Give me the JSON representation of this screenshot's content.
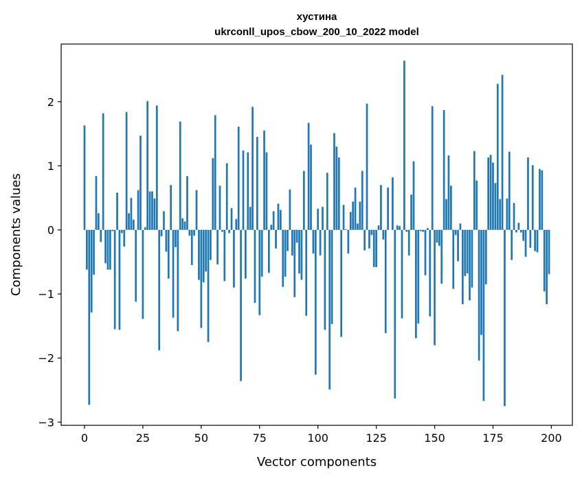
{
  "chart_data": {
    "type": "bar",
    "title": "хустина",
    "subtitle": "ukrconll_upos_cbow_200_10_2022 model",
    "xlabel": "Vector components",
    "ylabel": "Components values",
    "xlim": [
      -10,
      209
    ],
    "ylim": [
      -3.05,
      2.9
    ],
    "xticks": [
      0,
      25,
      50,
      75,
      100,
      125,
      150,
      175,
      200
    ],
    "yticks": [
      -3,
      -2,
      -1,
      0,
      1,
      2
    ],
    "ytick_labels": [
      "−3",
      "−2",
      "−1",
      "0",
      "1",
      "2"
    ],
    "grid": false,
    "bar_color": "#1f77b4",
    "x": [
      0,
      1,
      2,
      3,
      4,
      5,
      6,
      7,
      8,
      9,
      10,
      11,
      12,
      13,
      14,
      15,
      16,
      17,
      18,
      19,
      20,
      21,
      22,
      23,
      24,
      25,
      26,
      27,
      28,
      29,
      30,
      31,
      32,
      33,
      34,
      35,
      36,
      37,
      38,
      39,
      40,
      41,
      42,
      43,
      44,
      45,
      46,
      47,
      48,
      49,
      50,
      51,
      52,
      53,
      54,
      55,
      56,
      57,
      58,
      59,
      60,
      61,
      62,
      63,
      64,
      65,
      66,
      67,
      68,
      69,
      70,
      71,
      72,
      73,
      74,
      75,
      76,
      77,
      78,
      79,
      80,
      81,
      82,
      83,
      84,
      85,
      86,
      87,
      88,
      89,
      90,
      91,
      92,
      93,
      94,
      95,
      96,
      97,
      98,
      99,
      100,
      101,
      102,
      103,
      104,
      105,
      106,
      107,
      108,
      109,
      110,
      111,
      112,
      113,
      114,
      115,
      116,
      117,
      118,
      119,
      120,
      121,
      122,
      123,
      124,
      125,
      126,
      127,
      128,
      129,
      130,
      131,
      132,
      133,
      134,
      135,
      136,
      137,
      138,
      139,
      140,
      141,
      142,
      143,
      144,
      145,
      146,
      147,
      148,
      149,
      150,
      151,
      152,
      153,
      154,
      155,
      156,
      157,
      158,
      159,
      160,
      161,
      162,
      163,
      164,
      165,
      166,
      167,
      168,
      169,
      170,
      171,
      172,
      173,
      174,
      175,
      176,
      177,
      178,
      179,
      180,
      181,
      182,
      183,
      184,
      185,
      186,
      187,
      188,
      189,
      190,
      191,
      192,
      193,
      194,
      195,
      196,
      197,
      198,
      199
    ],
    "values": [
      1.63,
      -0.62,
      -2.73,
      -1.29,
      -0.7,
      0.84,
      0.26,
      -0.19,
      1.82,
      -0.52,
      -0.62,
      -0.62,
      -0.02,
      -1.55,
      0.58,
      -1.56,
      -0.05,
      -0.26,
      1.84,
      0.26,
      0.5,
      0.16,
      -1.12,
      0.62,
      1.47,
      -1.39,
      0.04,
      2.01,
      0.6,
      0.6,
      0.49,
      1.94,
      -1.88,
      -0.1,
      0.29,
      -0.34,
      -0.76,
      0.7,
      -1.37,
      -0.27,
      -1.58,
      1.69,
      0.18,
      0.13,
      0.84,
      -0.09,
      -0.55,
      -0.09,
      0.62,
      -0.78,
      -1.53,
      -0.82,
      -0.65,
      -1.75,
      -0.47,
      1.12,
      1.79,
      -0.54,
      0.69,
      -0.03,
      -0.8,
      1.04,
      -0.05,
      0.34,
      -0.9,
      0.17,
      1.61,
      -2.36,
      1.24,
      -0.76,
      1.21,
      0.36,
      1.92,
      -1.14,
      1.45,
      -1.33,
      -0.73,
      1.55,
      1.21,
      -0.67,
      0.08,
      0.29,
      -0.29,
      0.41,
      0.31,
      -0.89,
      -0.73,
      -0.33,
      0.63,
      -0.4,
      -1.05,
      -0.2,
      -0.68,
      -0.78,
      0.92,
      -1.34,
      1.67,
      1.33,
      -0.37,
      -2.26,
      0.33,
      -0.4,
      0.36,
      -1.56,
      0.89,
      -2.49,
      -1.47,
      1.51,
      1.3,
      1.13,
      -1.67,
      0.39,
      0.01,
      -0.37,
      0.28,
      0.44,
      0.66,
      0.1,
      0.44,
      0.92,
      -0.32,
      1.97,
      -0.29,
      -0.08,
      -0.58,
      -0.58,
      0.07,
      0.7,
      -0.15,
      -1.61,
      0.66,
      0.0,
      0.82,
      -2.63,
      0.07,
      0.06,
      -1.38,
      2.64,
      -0.03,
      -0.4,
      0.55,
      1.07,
      -1.69,
      -1.46,
      -0.02,
      -0.03,
      -0.71,
      0.03,
      -1.35,
      1.93,
      -1.8,
      -0.2,
      -0.25,
      -0.84,
      1.87,
      0.48,
      1.16,
      0.69,
      -0.92,
      -0.08,
      -0.49,
      0.1,
      -1.16,
      -0.72,
      -0.68,
      -1.1,
      -0.9,
      1.23,
      0.77,
      -2.04,
      -1.64,
      -2.67,
      -0.85,
      1.13,
      1.17,
      1.05,
      0.73,
      2.28,
      0.48,
      2.42,
      -2.75,
      0.49,
      1.22,
      -0.47,
      0.42,
      -0.04,
      0.11,
      -0.04,
      -0.17,
      -0.42,
      1.13,
      -0.28,
      1.01,
      -0.33,
      -0.35,
      0.95,
      0.93,
      -0.96,
      -1.16,
      -0.69
    ]
  }
}
